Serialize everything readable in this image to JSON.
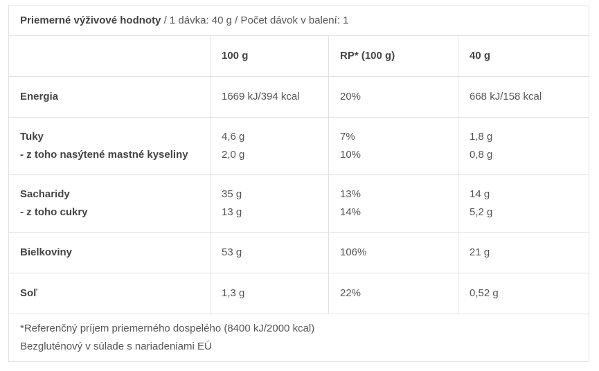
{
  "header": {
    "title_bold": "Priemerné výživové hodnoty",
    "title_rest": " / 1 dávka: 40 g / Počet dávok v balení: 1"
  },
  "columns": [
    "",
    "100 g",
    "RP* (100 g)",
    "40 g"
  ],
  "rows": [
    {
      "labels": [
        "Energia"
      ],
      "c100": [
        "1669 kJ/394 kcal"
      ],
      "rp": [
        "20%"
      ],
      "c40": [
        "668 kJ/158 kcal"
      ]
    },
    {
      "labels": [
        "Tuky",
        "- z toho nasýtené mastné kyseliny"
      ],
      "c100": [
        "4,6 g",
        "2,0 g"
      ],
      "rp": [
        "7%",
        "10%"
      ],
      "c40": [
        "1,8 g",
        "0,8 g"
      ]
    },
    {
      "labels": [
        "Sacharidy",
        "- z toho cukry"
      ],
      "c100": [
        "35 g",
        "13 g"
      ],
      "rp": [
        "13%",
        "14%"
      ],
      "c40": [
        "14 g",
        "5,2 g"
      ]
    },
    {
      "labels": [
        "Bielkoviny"
      ],
      "c100": [
        "53 g"
      ],
      "rp": [
        "106%"
      ],
      "c40": [
        "21 g"
      ]
    },
    {
      "labels": [
        "Soľ"
      ],
      "c100": [
        "1,3 g"
      ],
      "rp": [
        "22%"
      ],
      "c40": [
        "0,52 g"
      ]
    }
  ],
  "footer": {
    "line1": "*Referenčný príjem priemerného dospelého (8400 kJ/2000 kcal)",
    "line2": "Bezgluténový v súlade s nariadeniami EÚ"
  },
  "colors": {
    "text": "#555555",
    "border": "#e2e2e2"
  }
}
